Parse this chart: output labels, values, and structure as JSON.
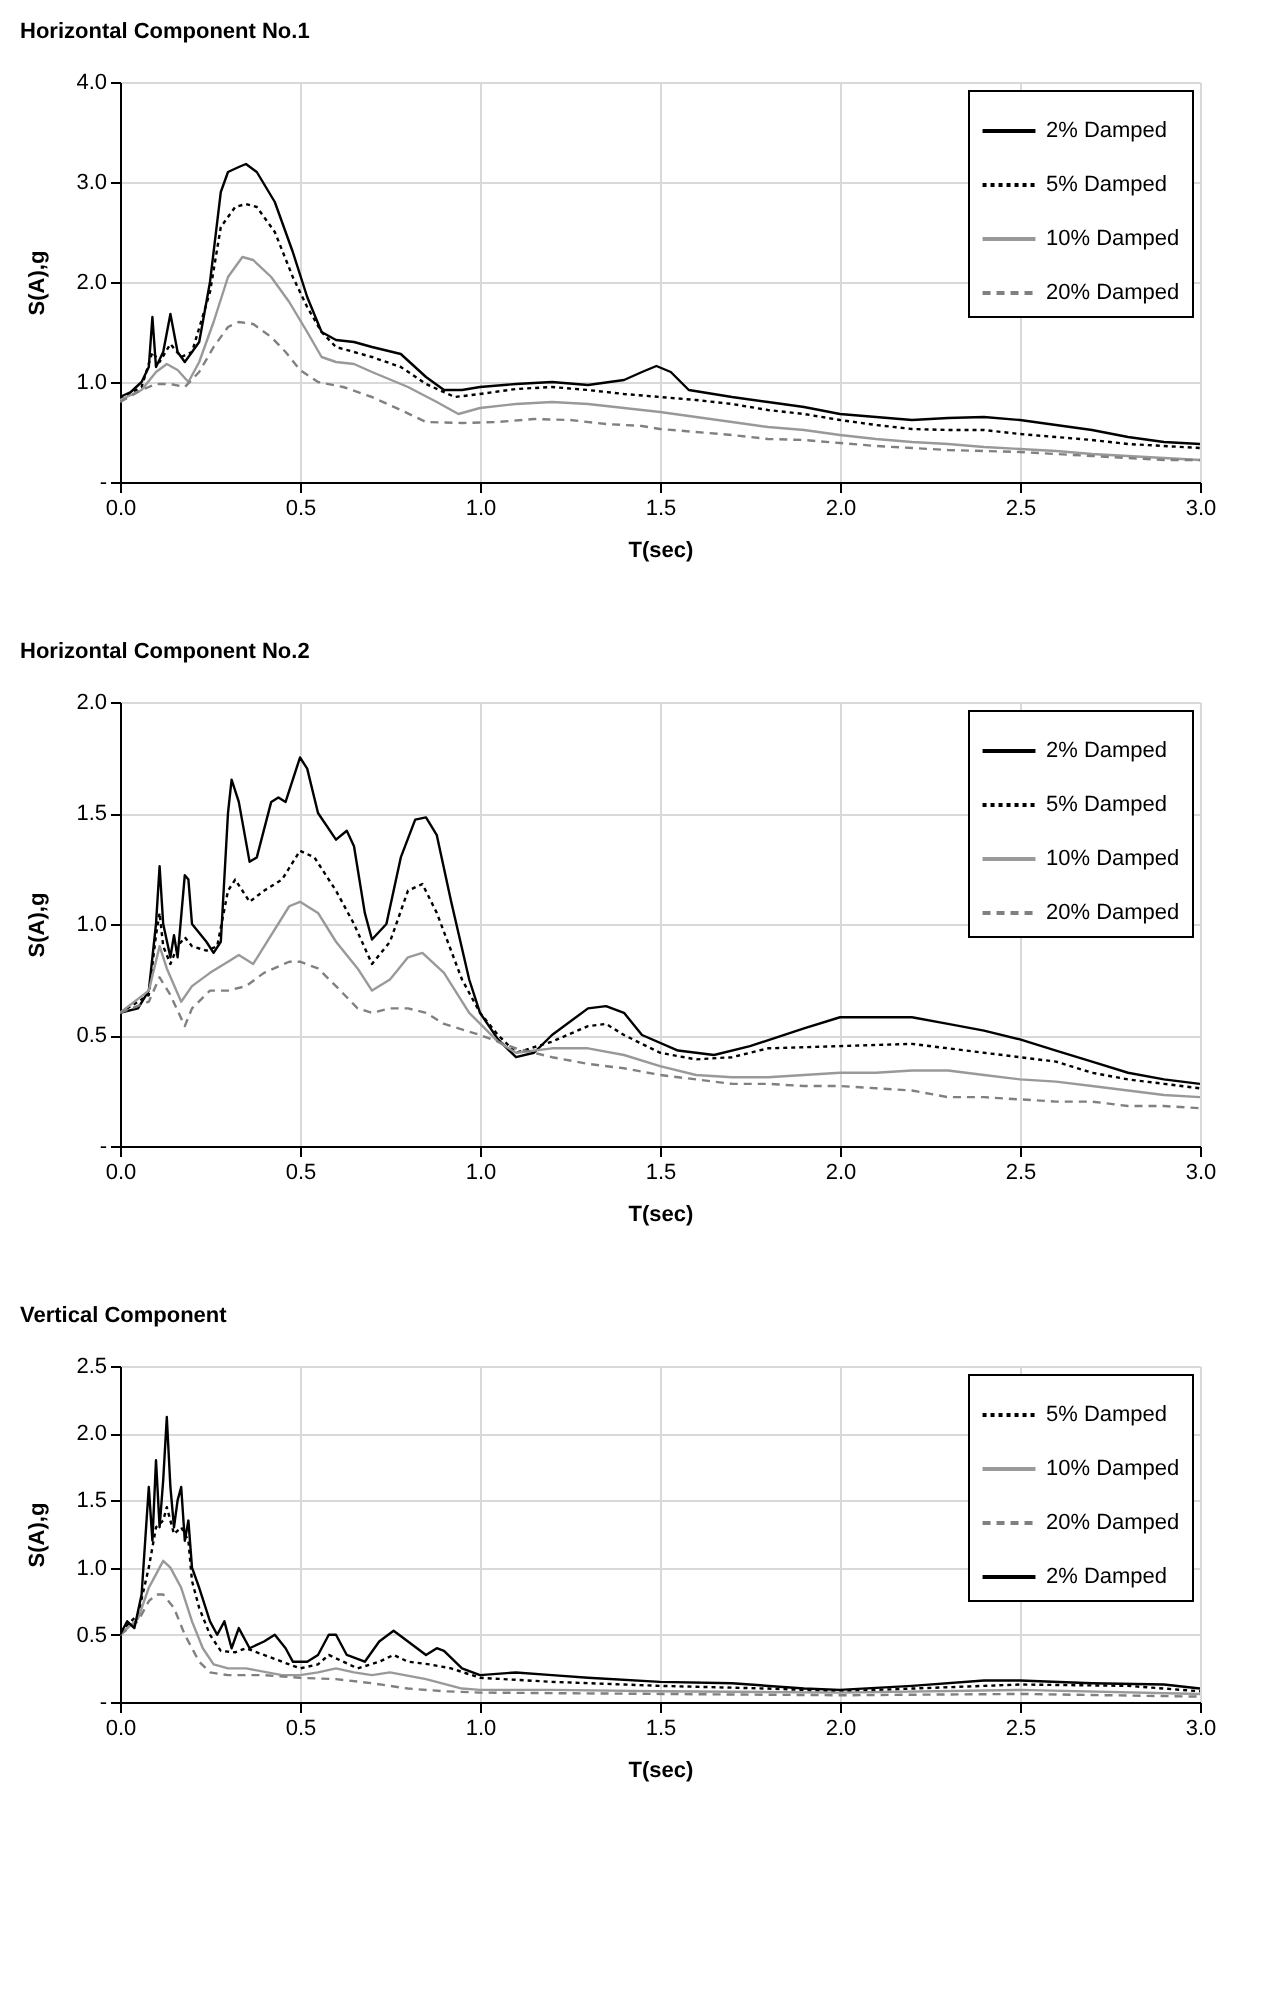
{
  "chart_data": [
    {
      "type": "line",
      "title": "Horizontal Component No.1",
      "xlabel": "T(sec)",
      "ylabel": "S(A),g",
      "xlim": [
        0,
        3
      ],
      "xticks": [
        {
          "value": 0,
          "label": "0.0"
        },
        0.5,
        {
          "value": 1,
          "label": "1.0"
        },
        1.5,
        {
          "value": 2,
          "label": "2.0"
        },
        2.5,
        {
          "value": 3,
          "label": "3.0"
        }
      ],
      "ylim": [
        0,
        4
      ],
      "yticks": [
        {
          "value": 0,
          "label": "-"
        },
        {
          "value": 1,
          "label": "1.0"
        },
        {
          "value": 2,
          "label": "2.0"
        },
        {
          "value": 3,
          "label": "3.0"
        },
        {
          "value": 4,
          "label": "4.0"
        }
      ],
      "grid": true,
      "legend": "top right",
      "series": [
        {
          "name": "2% Damped",
          "color": "#000000",
          "line_style": "solid",
          "x": [
            0,
            0.03,
            0.06,
            0.08,
            0.09,
            0.1,
            0.12,
            0.14,
            0.16,
            0.18,
            0.2,
            0.22,
            0.25,
            0.28,
            0.3,
            0.33,
            0.35,
            0.38,
            0.43,
            0.48,
            0.52,
            0.56,
            0.6,
            0.65,
            0.7,
            0.78,
            0.85,
            0.9,
            0.95,
            1.0,
            1.1,
            1.2,
            1.3,
            1.4,
            1.45,
            1.49,
            1.53,
            1.58,
            1.7,
            1.8,
            1.9,
            2.0,
            2.1,
            2.2,
            2.3,
            2.4,
            2.5,
            2.6,
            2.7,
            2.8,
            2.9,
            3.0
          ],
          "values": [
            0.85,
            0.9,
            1.0,
            1.15,
            1.65,
            1.15,
            1.3,
            1.68,
            1.3,
            1.2,
            1.3,
            1.4,
            2.0,
            2.9,
            3.1,
            3.15,
            3.18,
            3.1,
            2.8,
            2.3,
            1.85,
            1.5,
            1.42,
            1.4,
            1.35,
            1.28,
            1.05,
            0.92,
            0.92,
            0.95,
            0.98,
            1.0,
            0.97,
            1.02,
            1.1,
            1.16,
            1.1,
            0.92,
            0.85,
            0.8,
            0.75,
            0.68,
            0.65,
            0.62,
            0.64,
            0.65,
            0.62,
            0.57,
            0.52,
            0.45,
            0.4,
            0.38
          ]
        },
        {
          "name": "5%  Damped",
          "color": "#000000",
          "line_style": "dotted",
          "x": [
            0,
            0.06,
            0.09,
            0.11,
            0.14,
            0.17,
            0.2,
            0.25,
            0.28,
            0.32,
            0.35,
            0.38,
            0.43,
            0.48,
            0.52,
            0.56,
            0.6,
            0.7,
            0.78,
            0.85,
            0.93,
            1.0,
            1.1,
            1.2,
            1.3,
            1.4,
            1.5,
            1.6,
            1.7,
            1.8,
            1.9,
            2.0,
            2.1,
            2.2,
            2.3,
            2.4,
            2.5,
            2.6,
            2.7,
            2.8,
            2.9,
            3.0
          ],
          "values": [
            0.83,
            0.95,
            1.3,
            1.2,
            1.38,
            1.25,
            1.3,
            1.9,
            2.55,
            2.75,
            2.78,
            2.75,
            2.5,
            2.05,
            1.75,
            1.5,
            1.35,
            1.25,
            1.15,
            0.98,
            0.85,
            0.88,
            0.93,
            0.95,
            0.92,
            0.88,
            0.85,
            0.82,
            0.78,
            0.72,
            0.68,
            0.62,
            0.57,
            0.53,
            0.52,
            0.52,
            0.48,
            0.45,
            0.42,
            0.38,
            0.36,
            0.34
          ]
        },
        {
          "name": "10% Damped",
          "color": "#999999",
          "line_style": "solid",
          "x": [
            0,
            0.06,
            0.1,
            0.13,
            0.16,
            0.19,
            0.22,
            0.26,
            0.3,
            0.34,
            0.37,
            0.42,
            0.47,
            0.52,
            0.56,
            0.6,
            0.65,
            0.7,
            0.8,
            0.88,
            0.94,
            1.0,
            1.1,
            1.2,
            1.3,
            1.4,
            1.5,
            1.6,
            1.7,
            1.8,
            1.9,
            2.0,
            2.1,
            2.2,
            2.3,
            2.4,
            2.5,
            2.6,
            2.7,
            2.8,
            2.9,
            3.0
          ],
          "values": [
            0.82,
            0.92,
            1.1,
            1.18,
            1.12,
            1.0,
            1.2,
            1.6,
            2.05,
            2.25,
            2.22,
            2.05,
            1.8,
            1.5,
            1.25,
            1.2,
            1.18,
            1.1,
            0.95,
            0.8,
            0.68,
            0.74,
            0.78,
            0.8,
            0.78,
            0.74,
            0.7,
            0.65,
            0.6,
            0.55,
            0.52,
            0.47,
            0.43,
            0.4,
            0.38,
            0.35,
            0.33,
            0.31,
            0.28,
            0.26,
            0.24,
            0.22
          ]
        },
        {
          "name": "20% Damped",
          "color": "#808080",
          "line_style": "dashed",
          "x": [
            0,
            0.06,
            0.1,
            0.14,
            0.18,
            0.22,
            0.26,
            0.3,
            0.33,
            0.37,
            0.42,
            0.46,
            0.5,
            0.55,
            0.62,
            0.7,
            0.78,
            0.85,
            0.95,
            1.05,
            1.15,
            1.25,
            1.35,
            1.45,
            1.5,
            1.6,
            1.7,
            1.8,
            1.9,
            2.0,
            2.1,
            2.2,
            2.3,
            2.4,
            2.5,
            2.6,
            2.7,
            2.8,
            2.9,
            3.0
          ],
          "values": [
            0.8,
            0.92,
            0.98,
            0.98,
            0.95,
            1.1,
            1.35,
            1.55,
            1.6,
            1.58,
            1.45,
            1.3,
            1.12,
            1.0,
            0.95,
            0.85,
            0.72,
            0.6,
            0.59,
            0.6,
            0.63,
            0.62,
            0.58,
            0.56,
            0.53,
            0.5,
            0.47,
            0.43,
            0.42,
            0.39,
            0.36,
            0.34,
            0.32,
            0.31,
            0.3,
            0.28,
            0.26,
            0.24,
            0.22,
            0.22
          ]
        }
      ]
    },
    {
      "type": "line",
      "title": "Horizontal Component No.2",
      "xlabel": "T(sec)",
      "ylabel": "S(A),g",
      "xlim": [
        0,
        3
      ],
      "xticks": [
        {
          "value": 0,
          "label": "0.0"
        },
        0.5,
        {
          "value": 1,
          "label": "1.0"
        },
        1.5,
        {
          "value": 2,
          "label": "2.0"
        },
        2.5,
        {
          "value": 3,
          "label": "3.0"
        }
      ],
      "ylim": [
        0,
        2
      ],
      "yticks": [
        {
          "value": 0,
          "label": "-"
        },
        0.5,
        {
          "value": 1,
          "label": "1.0"
        },
        1.5,
        {
          "value": 2,
          "label": "2.0"
        }
      ],
      "grid": true,
      "legend": "top right",
      "series": [
        {
          "name": "2% Damped",
          "color": "#000000",
          "line_style": "solid",
          "x": [
            0,
            0.05,
            0.08,
            0.1,
            0.11,
            0.12,
            0.14,
            0.15,
            0.16,
            0.18,
            0.19,
            0.2,
            0.24,
            0.26,
            0.28,
            0.3,
            0.31,
            0.33,
            0.36,
            0.38,
            0.42,
            0.44,
            0.46,
            0.48,
            0.5,
            0.52,
            0.55,
            0.6,
            0.63,
            0.65,
            0.68,
            0.7,
            0.74,
            0.78,
            0.82,
            0.85,
            0.88,
            0.92,
            0.97,
            1.0,
            1.05,
            1.1,
            1.15,
            1.2,
            1.3,
            1.35,
            1.4,
            1.45,
            1.55,
            1.65,
            1.75,
            1.9,
            2.0,
            2.1,
            2.2,
            2.3,
            2.4,
            2.5,
            2.6,
            2.7,
            2.8,
            2.9,
            3.0
          ],
          "values": [
            0.6,
            0.62,
            0.7,
            1.0,
            1.26,
            1.0,
            0.85,
            0.95,
            0.85,
            1.22,
            1.2,
            1.0,
            0.92,
            0.87,
            0.92,
            1.5,
            1.65,
            1.55,
            1.28,
            1.3,
            1.55,
            1.57,
            1.55,
            1.65,
            1.75,
            1.7,
            1.5,
            1.38,
            1.42,
            1.35,
            1.05,
            0.93,
            1.0,
            1.3,
            1.47,
            1.48,
            1.4,
            1.1,
            0.75,
            0.6,
            0.48,
            0.4,
            0.42,
            0.5,
            0.62,
            0.63,
            0.6,
            0.5,
            0.43,
            0.41,
            0.45,
            0.53,
            0.58,
            0.58,
            0.58,
            0.55,
            0.52,
            0.48,
            0.43,
            0.38,
            0.33,
            0.3,
            0.28
          ]
        },
        {
          "name": "5%  Damped",
          "color": "#000000",
          "line_style": "dotted",
          "x": [
            0,
            0.08,
            0.1,
            0.11,
            0.12,
            0.14,
            0.16,
            0.18,
            0.2,
            0.24,
            0.27,
            0.3,
            0.32,
            0.36,
            0.4,
            0.45,
            0.5,
            0.54,
            0.6,
            0.65,
            0.7,
            0.75,
            0.8,
            0.84,
            0.88,
            0.95,
            1.0,
            1.05,
            1.1,
            1.2,
            1.3,
            1.35,
            1.4,
            1.5,
            1.6,
            1.7,
            1.8,
            2.0,
            2.2,
            2.4,
            2.6,
            2.7,
            2.8,
            2.9,
            3.0
          ],
          "values": [
            0.6,
            0.68,
            0.95,
            1.05,
            0.9,
            0.82,
            0.9,
            0.94,
            0.9,
            0.88,
            0.9,
            1.15,
            1.2,
            1.1,
            1.15,
            1.2,
            1.33,
            1.3,
            1.15,
            1.0,
            0.82,
            0.92,
            1.15,
            1.18,
            1.05,
            0.75,
            0.6,
            0.5,
            0.42,
            0.47,
            0.54,
            0.55,
            0.5,
            0.42,
            0.39,
            0.4,
            0.44,
            0.45,
            0.46,
            0.42,
            0.38,
            0.33,
            0.3,
            0.28,
            0.26
          ]
        },
        {
          "name": "10% Damped",
          "color": "#999999",
          "line_style": "solid",
          "x": [
            0,
            0.08,
            0.11,
            0.13,
            0.17,
            0.2,
            0.25,
            0.3,
            0.33,
            0.37,
            0.42,
            0.47,
            0.5,
            0.55,
            0.6,
            0.66,
            0.7,
            0.75,
            0.8,
            0.84,
            0.9,
            0.97,
            1.05,
            1.1,
            1.2,
            1.3,
            1.4,
            1.5,
            1.6,
            1.7,
            1.8,
            1.9,
            2.0,
            2.1,
            2.2,
            2.3,
            2.4,
            2.5,
            2.6,
            2.7,
            2.8,
            2.9,
            3.0
          ],
          "values": [
            0.6,
            0.7,
            0.9,
            0.8,
            0.65,
            0.72,
            0.78,
            0.83,
            0.86,
            0.82,
            0.95,
            1.08,
            1.1,
            1.05,
            0.92,
            0.8,
            0.7,
            0.75,
            0.85,
            0.87,
            0.78,
            0.6,
            0.47,
            0.42,
            0.44,
            0.44,
            0.41,
            0.36,
            0.32,
            0.31,
            0.31,
            0.32,
            0.33,
            0.33,
            0.34,
            0.34,
            0.32,
            0.3,
            0.29,
            0.27,
            0.25,
            0.23,
            0.22
          ]
        },
        {
          "name": "20% Damped",
          "color": "#808080",
          "line_style": "dashed",
          "x": [
            0,
            0.08,
            0.11,
            0.14,
            0.18,
            0.2,
            0.25,
            0.3,
            0.35,
            0.4,
            0.47,
            0.5,
            0.55,
            0.6,
            0.66,
            0.7,
            0.75,
            0.8,
            0.85,
            0.9,
            1.0,
            1.1,
            1.2,
            1.3,
            1.4,
            1.5,
            1.6,
            1.7,
            1.8,
            1.9,
            2.0,
            2.1,
            2.2,
            2.3,
            2.4,
            2.5,
            2.6,
            2.7,
            2.8,
            2.9,
            3.0
          ],
          "values": [
            0.6,
            0.65,
            0.76,
            0.68,
            0.54,
            0.62,
            0.7,
            0.7,
            0.72,
            0.78,
            0.83,
            0.83,
            0.8,
            0.72,
            0.62,
            0.6,
            0.62,
            0.62,
            0.6,
            0.55,
            0.5,
            0.44,
            0.4,
            0.37,
            0.35,
            0.32,
            0.3,
            0.28,
            0.28,
            0.27,
            0.27,
            0.26,
            0.25,
            0.22,
            0.22,
            0.21,
            0.2,
            0.2,
            0.18,
            0.18,
            0.17
          ]
        }
      ]
    },
    {
      "type": "line",
      "title": "Vertical Component",
      "xlabel": "T(sec)",
      "ylabel": "S(A),g",
      "xlim": [
        0,
        3
      ],
      "xticks": [
        {
          "value": 0,
          "label": "0.0"
        },
        0.5,
        {
          "value": 1,
          "label": "1.0"
        },
        1.5,
        {
          "value": 2,
          "label": "2.0"
        },
        2.5,
        {
          "value": 3,
          "label": "3.0"
        }
      ],
      "ylim": [
        0,
        2.5
      ],
      "yticks": [
        {
          "value": 0,
          "label": "-"
        },
        0.5,
        {
          "value": 1,
          "label": "1.0"
        },
        1.5,
        {
          "value": 2,
          "label": "2.0"
        },
        2.5
      ],
      "grid": true,
      "legend": "top right",
      "series": [
        {
          "name": "5%  Damped",
          "color": "#000000",
          "line_style": "dotted",
          "x": [
            0,
            0.05,
            0.08,
            0.1,
            0.12,
            0.13,
            0.15,
            0.17,
            0.19,
            0.2,
            0.22,
            0.25,
            0.28,
            0.32,
            0.35,
            0.4,
            0.45,
            0.5,
            0.55,
            0.58,
            0.62,
            0.66,
            0.72,
            0.76,
            0.8,
            0.86,
            0.92,
            1.0,
            1.2,
            1.5,
            1.8,
            2.0,
            2.2,
            2.5,
            2.8,
            3.0
          ],
          "values": [
            0.52,
            0.65,
            1.0,
            1.3,
            1.35,
            1.45,
            1.25,
            1.3,
            1.2,
            0.9,
            0.7,
            0.5,
            0.38,
            0.37,
            0.4,
            0.35,
            0.3,
            0.25,
            0.28,
            0.35,
            0.3,
            0.25,
            0.3,
            0.35,
            0.3,
            0.28,
            0.25,
            0.18,
            0.15,
            0.12,
            0.1,
            0.08,
            0.1,
            0.13,
            0.12,
            0.08
          ]
        },
        {
          "name": "10% Damped",
          "color": "#999999",
          "line_style": "solid",
          "x": [
            0,
            0.05,
            0.08,
            0.1,
            0.12,
            0.14,
            0.17,
            0.2,
            0.23,
            0.26,
            0.3,
            0.35,
            0.45,
            0.5,
            0.55,
            0.6,
            0.65,
            0.7,
            0.75,
            0.85,
            0.95,
            1.0,
            1.2,
            1.5,
            2.0,
            2.5,
            3.0
          ],
          "values": [
            0.5,
            0.62,
            0.85,
            0.95,
            1.05,
            1.0,
            0.85,
            0.6,
            0.4,
            0.28,
            0.25,
            0.25,
            0.2,
            0.2,
            0.22,
            0.25,
            0.22,
            0.2,
            0.22,
            0.17,
            0.1,
            0.09,
            0.09,
            0.08,
            0.07,
            0.09,
            0.06
          ]
        },
        {
          "name": "20% Damped",
          "color": "#808080",
          "line_style": "dashed",
          "x": [
            0,
            0.05,
            0.08,
            0.1,
            0.12,
            0.15,
            0.18,
            0.22,
            0.25,
            0.3,
            0.4,
            0.5,
            0.6,
            0.7,
            0.8,
            0.9,
            1.0,
            1.5,
            2.0,
            2.5,
            3.0
          ],
          "values": [
            0.5,
            0.6,
            0.75,
            0.8,
            0.8,
            0.7,
            0.5,
            0.3,
            0.22,
            0.2,
            0.2,
            0.18,
            0.17,
            0.14,
            0.1,
            0.08,
            0.07,
            0.06,
            0.05,
            0.06,
            0.04
          ]
        },
        {
          "name": "2% Damped",
          "color": "#000000",
          "line_style": "solid",
          "x": [
            0,
            0.02,
            0.04,
            0.06,
            0.08,
            0.09,
            0.1,
            0.11,
            0.12,
            0.13,
            0.14,
            0.15,
            0.16,
            0.17,
            0.18,
            0.19,
            0.2,
            0.22,
            0.25,
            0.27,
            0.29,
            0.31,
            0.33,
            0.36,
            0.4,
            0.43,
            0.46,
            0.48,
            0.52,
            0.55,
            0.58,
            0.6,
            0.63,
            0.68,
            0.72,
            0.76,
            0.8,
            0.85,
            0.88,
            0.9,
            0.95,
            1.0,
            1.1,
            1.2,
            1.3,
            1.5,
            1.7,
            1.9,
            2.0,
            2.2,
            2.4,
            2.5,
            2.7,
            2.9,
            3.0
          ],
          "values": [
            0.5,
            0.6,
            0.55,
            0.8,
            1.6,
            1.2,
            1.8,
            1.3,
            1.65,
            2.12,
            1.6,
            1.3,
            1.5,
            1.6,
            1.2,
            1.35,
            1.0,
            0.85,
            0.6,
            0.5,
            0.6,
            0.4,
            0.55,
            0.4,
            0.45,
            0.5,
            0.4,
            0.3,
            0.3,
            0.35,
            0.5,
            0.5,
            0.35,
            0.3,
            0.45,
            0.53,
            0.45,
            0.35,
            0.4,
            0.38,
            0.25,
            0.2,
            0.22,
            0.2,
            0.18,
            0.15,
            0.14,
            0.1,
            0.09,
            0.12,
            0.16,
            0.16,
            0.14,
            0.13,
            0.1
          ]
        }
      ]
    }
  ]
}
